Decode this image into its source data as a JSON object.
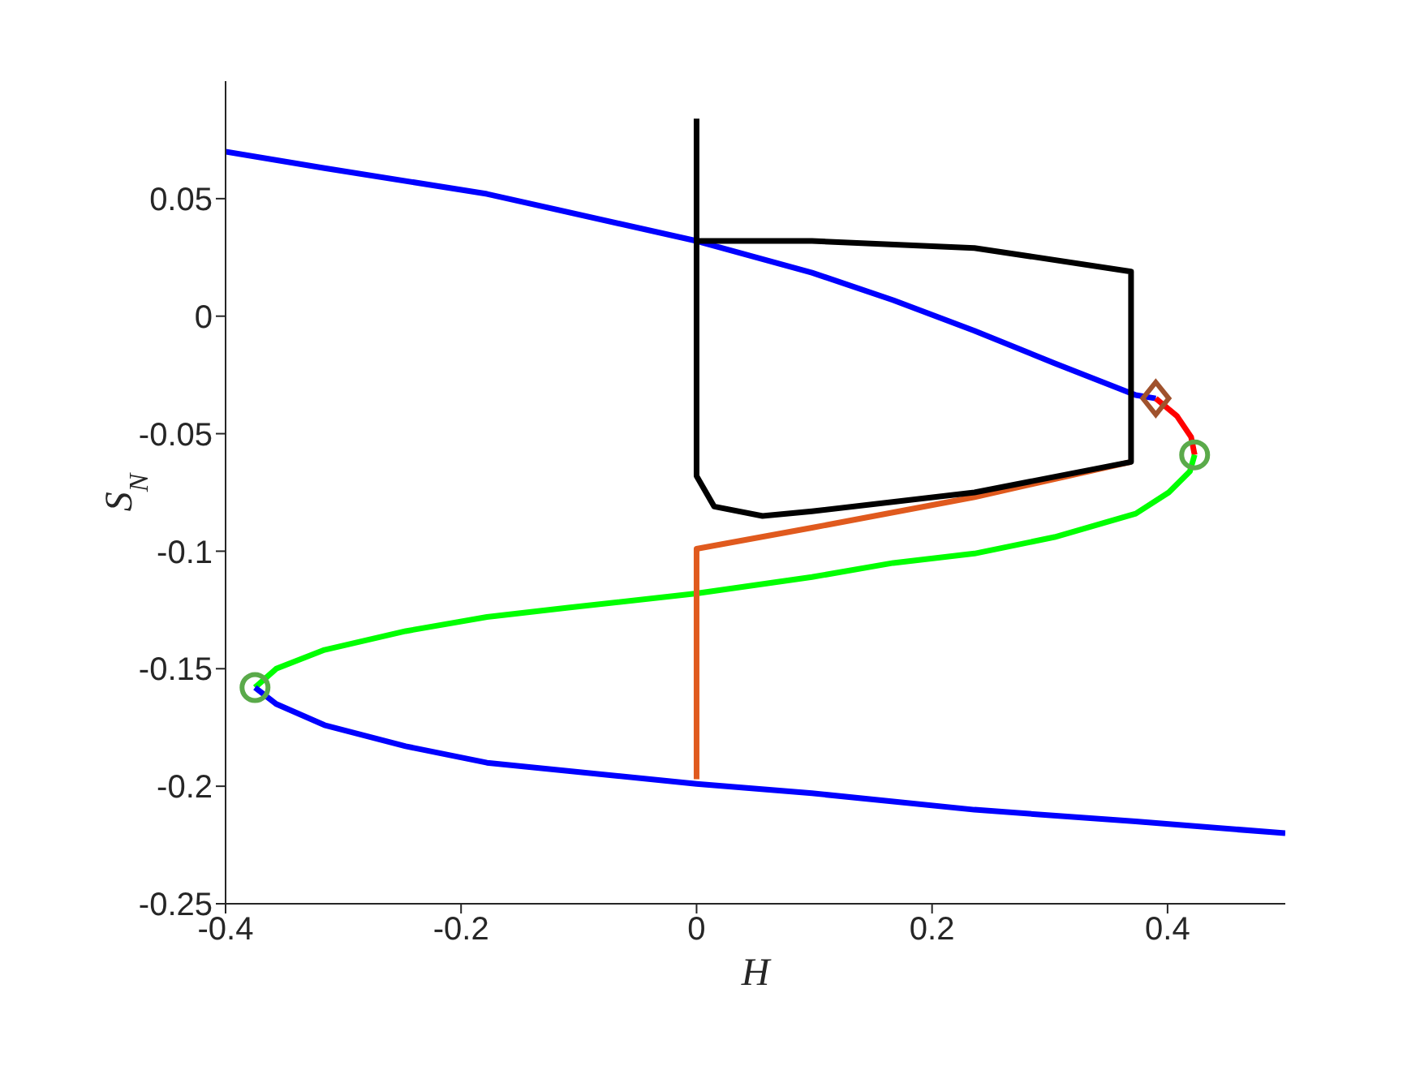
{
  "chart_data": {
    "type": "line",
    "xlabel": "H",
    "ylabel": "S$_{N}$",
    "xlim": [
      -0.4,
      0.5
    ],
    "xticks": [
      -0.4,
      -0.2,
      0,
      0.2,
      0.4
    ],
    "ylim": [
      -0.25,
      0.1
    ],
    "yticks": [
      -0.25,
      -0.2,
      -0.15,
      -0.1,
      -0.05,
      0,
      0.05
    ],
    "grid": false,
    "line_style": "solid",
    "marker": "none",
    "series": [
      {
        "color": "#0000ff",
        "x": [
          -0.4,
          -0.316,
          -0.178,
          0,
          0.098,
          0.167,
          0.236,
          0.304,
          0.373,
          0.39
        ],
        "values": [
          0.07,
          0.063,
          0.052,
          0.032,
          0.0185,
          0.0068,
          -0.0062,
          -0.02,
          -0.0336,
          -0.035
        ]
      },
      {
        "color": "#ff0000",
        "x": [
          0.39,
          0.408,
          0.42,
          0.423
        ],
        "values": [
          -0.035,
          -0.0425,
          -0.0514,
          -0.059
        ]
      },
      {
        "color": "#00ff00",
        "x": [
          0.423,
          0.419,
          0.401,
          0.373,
          0.304,
          0.236,
          0.167,
          0.098,
          0,
          -0.109,
          -0.178,
          -0.247,
          -0.316,
          -0.357,
          -0.375
        ],
        "values": [
          -0.059,
          -0.066,
          -0.075,
          -0.084,
          -0.094,
          -0.101,
          -0.105,
          -0.111,
          -0.118,
          -0.124,
          -0.128,
          -0.134,
          -0.142,
          -0.15,
          -0.158
        ]
      },
      {
        "color": "#0000ff",
        "x": [
          -0.375,
          -0.357,
          -0.316,
          -0.247,
          -0.178,
          0,
          0.098,
          0.236,
          0.373,
          0.5
        ],
        "values": [
          -0.158,
          -0.165,
          -0.174,
          -0.183,
          -0.19,
          -0.199,
          -0.203,
          -0.21,
          -0.215,
          -0.22
        ]
      },
      {
        "color": "#e05a1e",
        "x": [
          0,
          0,
          0.098,
          0.236,
          0.369
        ],
        "values": [
          -0.197,
          -0.099,
          -0.09,
          -0.077,
          -0.062
        ]
      },
      {
        "color": "#000000",
        "x": [
          0,
          0,
          0.098,
          0.236,
          0.369,
          0.369,
          0.236,
          0.098,
          0.056,
          0.015,
          0,
          0
        ],
        "values": [
          0.084,
          0.032,
          0.032,
          0.029,
          0.019,
          -0.062,
          -0.075,
          -0.083,
          -0.085,
          -0.081,
          -0.068,
          0.032
        ]
      },
      {
        "type": "scatter",
        "marker": "circle",
        "color": "#5aaa4a",
        "x": [
          0.423,
          -0.375
        ],
        "values": [
          -0.059,
          -0.158
        ]
      },
      {
        "type": "scatter",
        "marker": "diamond",
        "color": "#a0522d",
        "x": [
          0.39
        ],
        "values": [
          -0.035
        ]
      }
    ]
  }
}
